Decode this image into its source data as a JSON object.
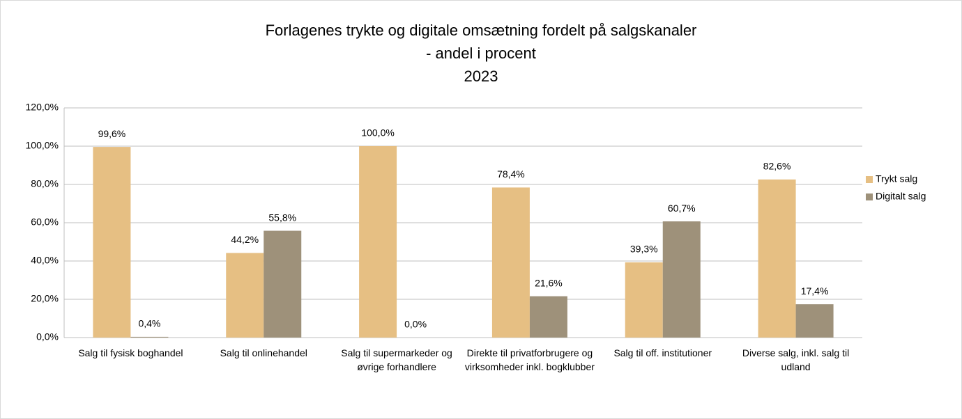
{
  "chart_data": {
    "type": "bar",
    "title": [
      "Forlagenes trykte og digitale omsætning fordelt på salgskanaler",
      "- andel i procent",
      "2023"
    ],
    "categories": [
      "Salg til fysisk boghandel",
      "Salg til onlinehandel",
      "Salg til supermarkeder og øvrige forhandlere",
      "Direkte til privatforbrugere og virksomheder inkl. bogklubber",
      "Salg til off. institutioner",
      "Diverse salg, inkl. salg til udland"
    ],
    "series": [
      {
        "name": "Trykt salg",
        "color": "#e6bf83",
        "values": [
          99.6,
          44.2,
          100.0,
          78.4,
          39.3,
          82.6
        ],
        "value_labels": [
          "99,6%",
          "44,2%",
          "100,0%",
          "78,4%",
          "39,3%",
          "82,6%"
        ]
      },
      {
        "name": "Digitalt salg",
        "color": "#9e917a",
        "values": [
          0.4,
          55.8,
          0.0,
          21.6,
          60.7,
          17.4
        ],
        "value_labels": [
          "0,4%",
          "55,8%",
          "0,0%",
          "21,6%",
          "60,7%",
          "17,4%"
        ]
      }
    ],
    "ylim": [
      0,
      120
    ],
    "yticks": [
      {
        "value": 0,
        "label": "0,0%"
      },
      {
        "value": 20,
        "label": "20,0%"
      },
      {
        "value": 40,
        "label": "40,0%"
      },
      {
        "value": 60,
        "label": "60,0%"
      },
      {
        "value": 80,
        "label": "80,0%"
      },
      {
        "value": 100,
        "label": "100,0%"
      },
      {
        "value": 120,
        "label": "120,0%"
      }
    ],
    "grid": true,
    "legend": "right"
  }
}
